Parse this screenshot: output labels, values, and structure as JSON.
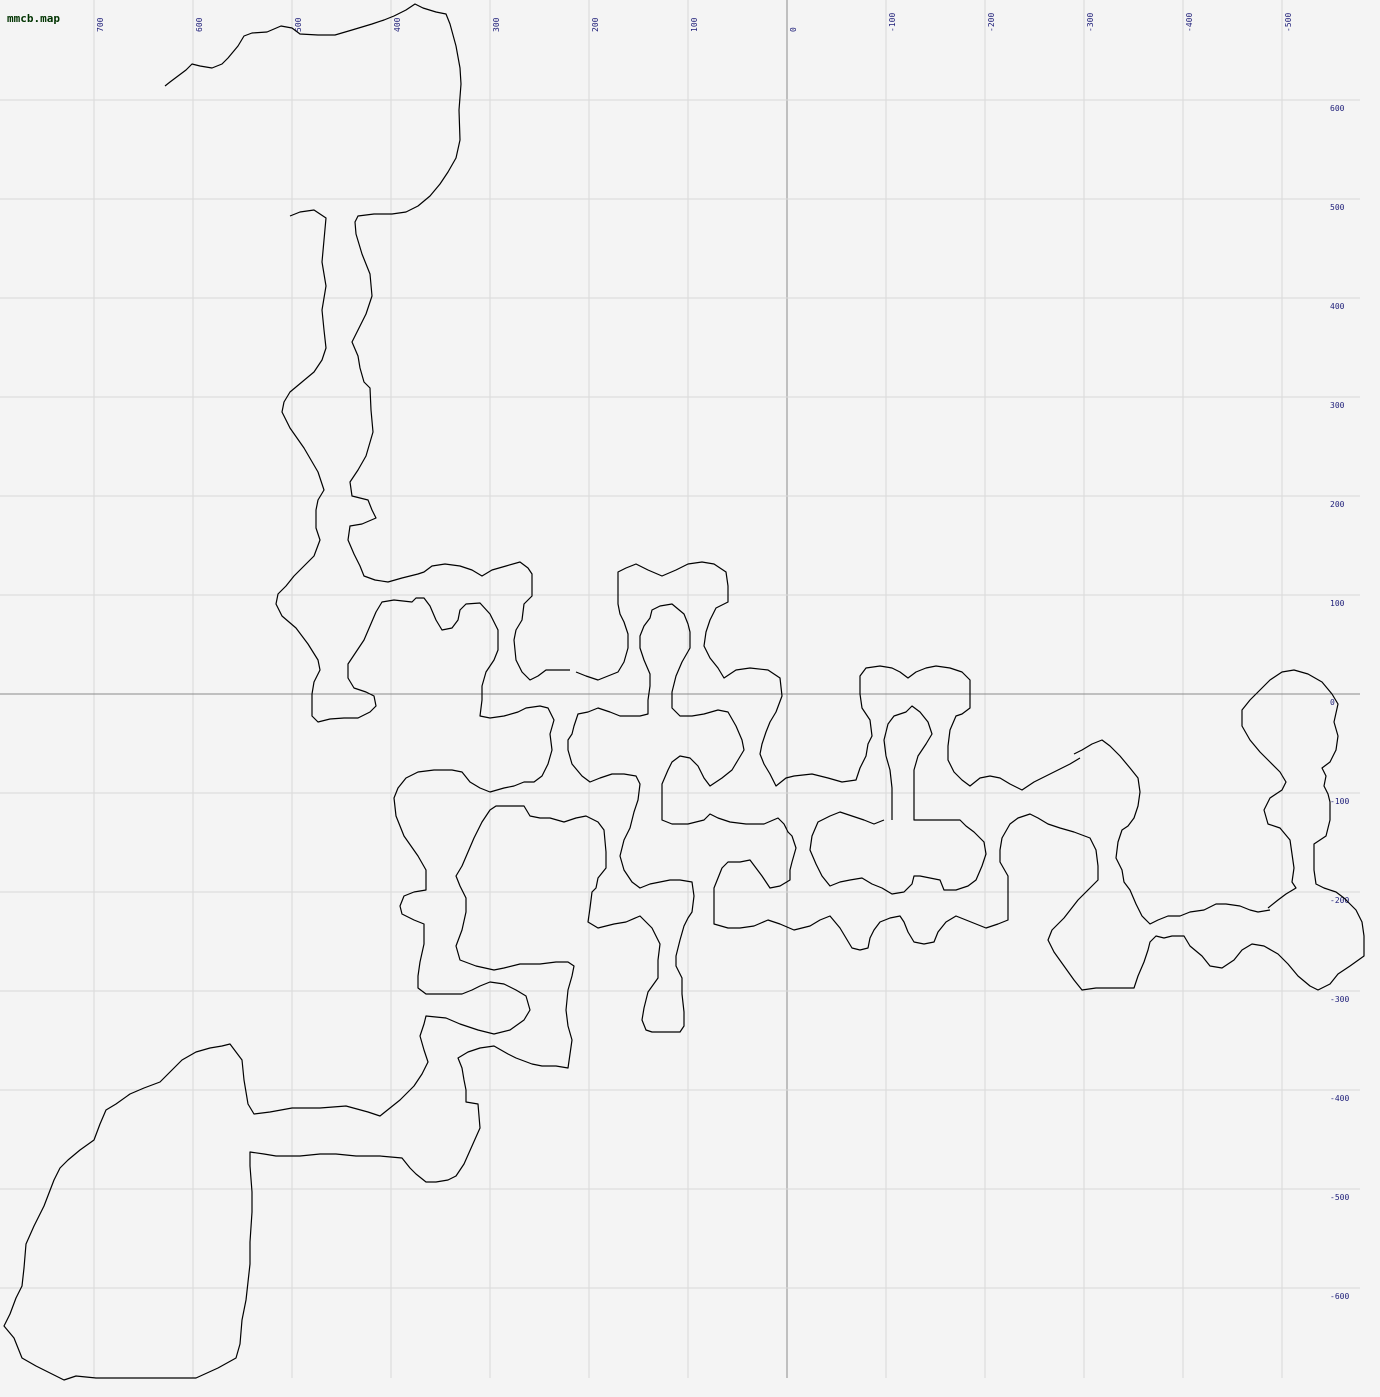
{
  "map": {
    "filename": "mmcb.map",
    "x_ticks": [
      "700",
      "600",
      "500",
      "400",
      "300",
      "200",
      "100",
      "0",
      "-100",
      "-200",
      "-300",
      "-400",
      "-500"
    ],
    "y_ticks": [
      "600",
      "500",
      "400",
      "300",
      "200",
      "100",
      "0",
      "-100",
      "-200",
      "-300",
      "-400",
      "-500",
      "-600"
    ],
    "colors": {
      "background": "#f4f4f4",
      "grid": "#d9d9d9",
      "axis": "#8a8a8a",
      "labels": "#20207a",
      "walls": "#000000"
    }
  }
}
